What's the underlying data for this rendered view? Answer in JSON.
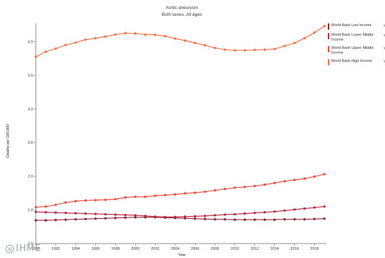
{
  "chart_data": {
    "type": "line",
    "title": "Aortic aneurysm",
    "subtitle": "Both sexes, All ages",
    "xlabel": "Year",
    "ylabel": "Deaths per 100,000",
    "xlim": [
      1990,
      2019
    ],
    "ylim": [
      0,
      6.5
    ],
    "x_ticks": [
      "1990",
      "1992",
      "1994",
      "1996",
      "1998",
      "2000",
      "2002",
      "2004",
      "2006",
      "2008",
      "2010",
      "2012",
      "2014",
      "2016",
      "2018"
    ],
    "y_ticks": [
      "0.0",
      "1.0",
      "2.0",
      "3.0",
      "4.0",
      "5.0",
      "6.0"
    ],
    "grid": false,
    "legend_position": "right",
    "x": [
      1990,
      1991,
      1992,
      1993,
      1994,
      1995,
      1996,
      1997,
      1998,
      1999,
      2000,
      2001,
      2002,
      2003,
      2004,
      2005,
      2006,
      2007,
      2008,
      2009,
      2010,
      2011,
      2012,
      2013,
      2014,
      2015,
      2016,
      2017,
      2018,
      2019
    ],
    "series": [
      {
        "name": "World Bank Low Income",
        "color": "#8b1a2b",
        "values": [
          0.69,
          0.69,
          0.7,
          0.71,
          0.72,
          0.73,
          0.74,
          0.75,
          0.76,
          0.77,
          0.78,
          0.78,
          0.78,
          0.77,
          0.76,
          0.75,
          0.74,
          0.73,
          0.72,
          0.72,
          0.71,
          0.71,
          0.71,
          0.71,
          0.71,
          0.72,
          0.72,
          0.72,
          0.73,
          0.74
        ]
      },
      {
        "name": "World Bank Lower Middle Income",
        "color": "#b5243a",
        "values": [
          0.94,
          0.93,
          0.92,
          0.91,
          0.9,
          0.89,
          0.88,
          0.87,
          0.86,
          0.85,
          0.84,
          0.82,
          0.8,
          0.79,
          0.79,
          0.8,
          0.81,
          0.82,
          0.84,
          0.86,
          0.87,
          0.89,
          0.91,
          0.93,
          0.95,
          0.98,
          1.01,
          1.04,
          1.07,
          1.1
        ]
      },
      {
        "name": "World Bank Upper Middle Income",
        "color": "#e8463e",
        "values": [
          1.08,
          1.1,
          1.15,
          1.22,
          1.26,
          1.28,
          1.29,
          1.3,
          1.32,
          1.37,
          1.39,
          1.39,
          1.42,
          1.44,
          1.46,
          1.49,
          1.51,
          1.54,
          1.58,
          1.62,
          1.66,
          1.68,
          1.71,
          1.75,
          1.8,
          1.85,
          1.89,
          1.93,
          1.99,
          2.06
        ]
      },
      {
        "name": "World Bank High Income",
        "color": "#f46d43",
        "values": [
          5.55,
          5.7,
          5.79,
          5.9,
          5.97,
          6.06,
          6.1,
          6.15,
          6.21,
          6.25,
          6.24,
          6.21,
          6.2,
          6.16,
          6.09,
          6.03,
          5.96,
          5.89,
          5.81,
          5.76,
          5.74,
          5.74,
          5.75,
          5.76,
          5.78,
          5.87,
          5.96,
          6.1,
          6.27,
          6.46
        ]
      }
    ]
  },
  "legend_extra": "y",
  "logo": {
    "text": "IHME"
  }
}
